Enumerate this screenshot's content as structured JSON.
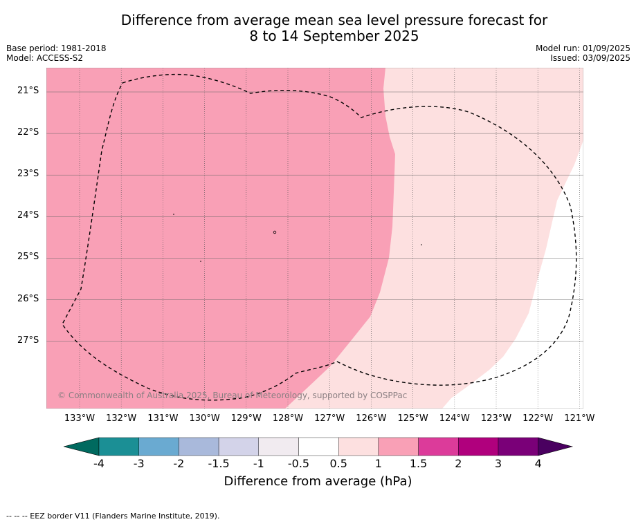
{
  "title": {
    "line1": "Difference from average mean sea level pressure forecast for",
    "line2": "8 to 14 September 2025"
  },
  "meta": {
    "base_period": "Base period: 1981-2018",
    "model": "Model: ACCESS-S2",
    "model_run": "Model run: 01/09/2025",
    "issued": "Issued: 03/09/2025"
  },
  "map": {
    "latitudes": [
      "21°S",
      "22°S",
      "23°S",
      "24°S",
      "25°S",
      "26°S",
      "27°S"
    ],
    "longitudes": [
      "133°W",
      "132°W",
      "131°W",
      "130°W",
      "129°W",
      "128°W",
      "127°W",
      "126°W",
      "125°W",
      "124°W",
      "123°W",
      "122°W",
      "121°W"
    ],
    "copyright": "© Commonwealth of Australia 2025, Bureau of Meteorology, supported by COSPPac",
    "fill_colors": {
      "band_1_to_1_5": "#f9a0b6",
      "band_0_5_to_1": "#fde0e0",
      "no_change": "#ffffff"
    }
  },
  "colorbar": {
    "ticks": [
      "-4",
      "-3",
      "-2",
      "-1.5",
      "-1",
      "-0.5",
      "0.5",
      "1",
      "1.5",
      "2",
      "3",
      "4"
    ],
    "colors": [
      "#1b8f95",
      "#6aaad1",
      "#a9b9db",
      "#d3d3e9",
      "#f1ebf0",
      "#ffffff",
      "#fde0e0",
      "#f9a0b6",
      "#dc3b9a",
      "#b0007d",
      "#7a0078"
    ],
    "low_extend_color": "#006a5f",
    "high_extend_color": "#4a0060",
    "label": "Difference from average (hPa)"
  },
  "footnote": "--  --  -- EEZ border V11 (Flanders Marine Institute, 2019)."
}
